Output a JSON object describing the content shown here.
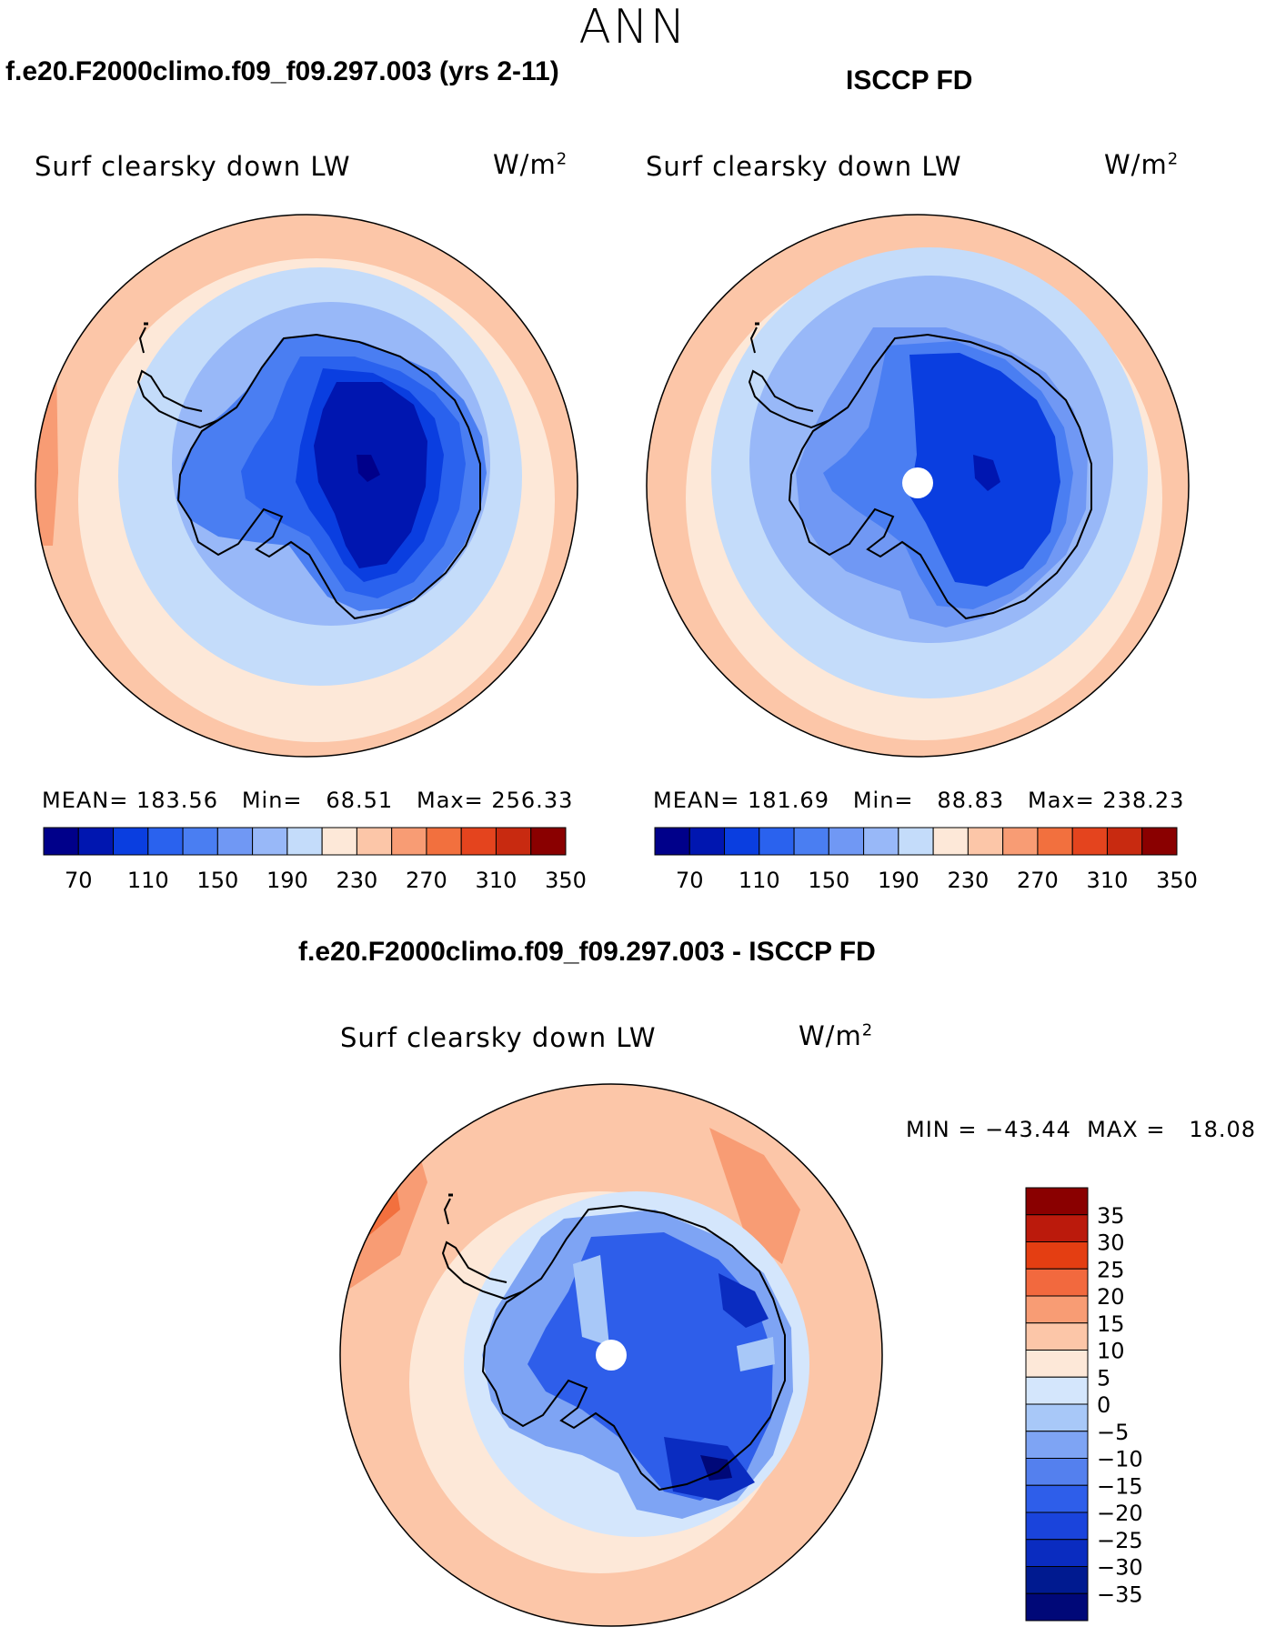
{
  "season": "ANN",
  "units_base": "W/m",
  "units_exp": "2",
  "panels": [
    {
      "title": "f.e20.F2000climo.f09_f09.297.003 (yrs 2-11)",
      "variable": "Surf clearsky down LW",
      "stats": "MEAN= 183.56   Min=   68.51   Max= 256.33"
    },
    {
      "title": "ISCCP FD",
      "variable": "Surf clearsky down LW",
      "stats": "MEAN= 181.69   Min=   88.83   Max= 238.23"
    },
    {
      "title": "f.e20.F2000climo.f09_f09.297.003 - ISCCP FD",
      "variable": "Surf clearsky down LW",
      "stats": "MIN = −43.44  MAX =   18.08"
    }
  ],
  "colorbar_abs": {
    "colors": [
      "#00008a",
      "#0016b0",
      "#0a3ee0",
      "#2a62ee",
      "#4a7ef2",
      "#7098f4",
      "#98b8f8",
      "#c4dcfa",
      "#fde8d8",
      "#fcc6a8",
      "#f89c74",
      "#f2703e",
      "#e4441e",
      "#c82a10",
      "#8a0000"
    ],
    "ticks": [
      "70",
      "110",
      "150",
      "190",
      "230",
      "270",
      "310",
      "350"
    ]
  },
  "colorbar_diff": {
    "colors": [
      "#8a0000",
      "#bb1a0c",
      "#e43e12",
      "#f2693e",
      "#f89c74",
      "#fcc6a8",
      "#fde8d8",
      "#d4e6fc",
      "#a8c8f8",
      "#7ea4f4",
      "#5480ee",
      "#2e5eea",
      "#1a44dc",
      "#0a2cc0",
      "#001a90",
      "#000878"
    ],
    "ticks": [
      "35",
      "30",
      "25",
      "20",
      "15",
      "10",
      "5",
      "0",
      "−5",
      "−10",
      "−15",
      "−20",
      "−25",
      "−30",
      "−35"
    ]
  }
}
